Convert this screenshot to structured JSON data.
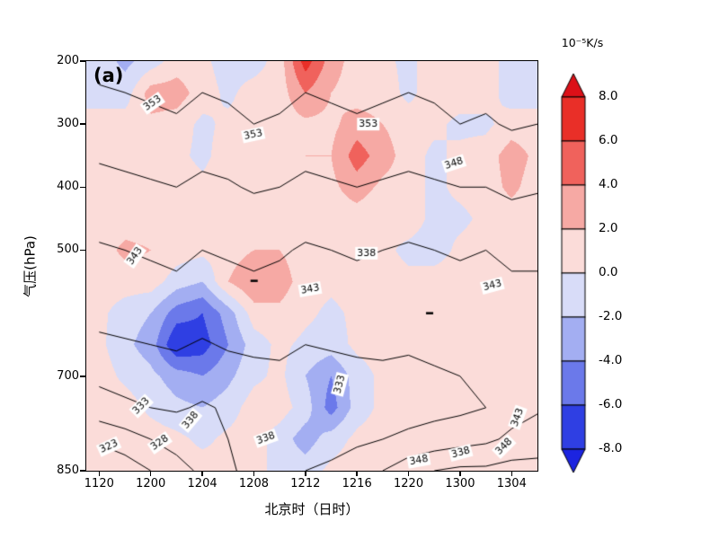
{
  "figure": {
    "panel_label": "(a)"
  },
  "axes": {
    "x": {
      "title": "北京时（日时）",
      "ticks": [
        "1120",
        "1200",
        "1204",
        "1208",
        "1212",
        "1216",
        "1220",
        "1300",
        "1304"
      ],
      "tick_hours": [
        0,
        4,
        8,
        12,
        16,
        20,
        24,
        28,
        32
      ],
      "domain_hours": [
        -1,
        34
      ]
    },
    "y": {
      "title": "气压(hPa)",
      "ticks": [
        "200",
        "300",
        "400",
        "500",
        "700",
        "850"
      ],
      "tick_values": [
        200,
        300,
        400,
        500,
        700,
        850
      ],
      "domain": [
        200,
        850
      ]
    }
  },
  "colorbar": {
    "title": "10⁻⁵K/s",
    "tick_labels": [
      "8.0",
      "6.0",
      "4.0",
      "2.0",
      "0.0",
      "-2.0",
      "-4.0",
      "-6.0",
      "-8.0"
    ],
    "boundaries": [
      8,
      6,
      4,
      2,
      0,
      -2,
      -4,
      -6,
      -8
    ],
    "segment_colors_top_to_bottom": [
      "#e92f28",
      "#f0625c",
      "#f6a9a4",
      "#fbdcd9",
      "#d8dcf8",
      "#a3aef2",
      "#6b79ea",
      "#2f3fe3"
    ],
    "arrow_top_color": "#dc1018",
    "arrow_bottom_color": "#1c24e0"
  },
  "chart_data": {
    "type": "heatmap",
    "description": "Time-pressure section of heating rate (shaded, 10^-5 K/s) with theta-e contours (K)",
    "x_hours": [
      0,
      2,
      4,
      6,
      8,
      10,
      12,
      14,
      16,
      18,
      20,
      22,
      24,
      26,
      28,
      30,
      32,
      34
    ],
    "x_hour_zero_label": "1120",
    "pressure_levels": [
      200,
      250,
      300,
      350,
      400,
      450,
      500,
      550,
      600,
      650,
      700,
      750,
      800,
      850
    ],
    "fill_levels": [
      -8,
      -6,
      -4,
      -2,
      0,
      2,
      4,
      6,
      8
    ],
    "fill_colors": [
      "#1c24e0",
      "#2f3fe3",
      "#6b79ea",
      "#a3aef2",
      "#d8dcf8",
      "#fbdcd9",
      "#f6a9a4",
      "#f0625c",
      "#e92f28",
      "#dc1018"
    ],
    "heating": [
      [
        -1,
        -2.5,
        -1,
        1,
        0.5,
        -1,
        -1,
        1,
        7,
        3,
        1,
        0.5,
        -0.5,
        1,
        1,
        1,
        -1,
        -1
      ],
      [
        -1,
        -1,
        3,
        3,
        1,
        -0.5,
        1,
        1,
        4,
        2,
        1,
        1,
        -0.5,
        1,
        1,
        1,
        -1,
        -1
      ],
      [
        1,
        1,
        1.5,
        1,
        -0.5,
        0.5,
        1,
        1,
        1.5,
        1.5,
        3,
        2,
        1,
        0.5,
        -0.5,
        -0.5,
        1,
        1
      ],
      [
        1,
        1,
        1,
        0.5,
        -0.5,
        1,
        1,
        1,
        2,
        2,
        5,
        3,
        1,
        -0.5,
        0.5,
        1,
        3,
        1.5
      ],
      [
        0.5,
        1,
        1,
        1,
        0.5,
        1,
        1,
        1.5,
        2,
        1.5,
        3,
        1.5,
        1,
        -0.5,
        0.5,
        1,
        2.5,
        1
      ],
      [
        1,
        1,
        1,
        1,
        0.5,
        1,
        1.5,
        1,
        1,
        1,
        1,
        0.5,
        1,
        -0.5,
        -0.5,
        0.5,
        1,
        1
      ],
      [
        1,
        2.5,
        2,
        1,
        0.5,
        1,
        2,
        2,
        1,
        0.5,
        1,
        0.5,
        -0.5,
        -1,
        0.5,
        1,
        1,
        1
      ],
      [
        1,
        1,
        1,
        -1,
        -2,
        2,
        4,
        3,
        1,
        0.5,
        1,
        1,
        0.5,
        1,
        1,
        1,
        1,
        1
      ],
      [
        0.5,
        -1,
        -2,
        -5,
        -6,
        -3,
        1,
        1.5,
        0.5,
        -0.5,
        0.5,
        1,
        0.5,
        0.5,
        1,
        1,
        1,
        1
      ],
      [
        0.5,
        -1.5,
        -3,
        -8,
        -7,
        -4,
        -1,
        0.5,
        -0.5,
        -1,
        0.5,
        1,
        1,
        0.5,
        1,
        1,
        1,
        1
      ],
      [
        1,
        -0.5,
        -1.5,
        -3,
        -4,
        -2.5,
        -0.5,
        0.5,
        -2,
        -4,
        -1,
        0.5,
        1,
        0.5,
        0.5,
        1,
        0.5,
        1
      ],
      [
        1,
        1,
        -0.5,
        -1.5,
        -2,
        -1,
        1,
        1,
        -1,
        -5,
        -1,
        0.5,
        0.5,
        1,
        1,
        0.5,
        1,
        1
      ],
      [
        1,
        1,
        1,
        0.5,
        -0.5,
        0.5,
        1,
        -1,
        -3,
        -1,
        0.5,
        1,
        0.5,
        1,
        0.5,
        1,
        1,
        1
      ],
      [
        1,
        1,
        0.5,
        1,
        1,
        0.5,
        0.5,
        -0.5,
        -1,
        0.5,
        1,
        1,
        1,
        1,
        1,
        1,
        1,
        1
      ]
    ],
    "contour_levels": [
      323,
      328,
      333,
      338,
      343,
      348,
      353
    ],
    "theta_e": [
      [
        354.5,
        355,
        355.5,
        356,
        355,
        355.5,
        356.5,
        356,
        355,
        355.5,
        356,
        355.5,
        355,
        355.5,
        356.5,
        356,
        357,
        356.5
      ],
      [
        352.5,
        353,
        353.5,
        354,
        353,
        353.5,
        354.5,
        354,
        353,
        353.5,
        354,
        353.5,
        353,
        353.5,
        354.5,
        354,
        355,
        354.5
      ],
      [
        351,
        351.5,
        352,
        352.5,
        351.5,
        352,
        353,
        352.5,
        351.5,
        352,
        352.5,
        352,
        351.5,
        352,
        353,
        352.5,
        353.5,
        353
      ],
      [
        348.5,
        349,
        349.5,
        350,
        349,
        349.5,
        350.5,
        350,
        349,
        349.5,
        350,
        349.5,
        349,
        349.5,
        350.5,
        350,
        351,
        350.5
      ],
      [
        346.5,
        347,
        347.5,
        348,
        347,
        347.5,
        348.5,
        348,
        347,
        347.5,
        348,
        347.5,
        347,
        347.5,
        348,
        348,
        349,
        348.5
      ],
      [
        344.5,
        345,
        345.5,
        346,
        345,
        345.5,
        346,
        345.5,
        344.5,
        345,
        345.5,
        345,
        344.5,
        345,
        345.5,
        345.5,
        346.5,
        346
      ],
      [
        342.5,
        343,
        343.5,
        344,
        343,
        343.5,
        344,
        343.5,
        342.5,
        343,
        343.5,
        343,
        342.5,
        343,
        343.5,
        343,
        344,
        344
      ],
      [
        341,
        341.5,
        342,
        342.5,
        341.5,
        342,
        342.5,
        342,
        341,
        341.5,
        342,
        341.5,
        341,
        341.5,
        342,
        341.5,
        342.5,
        342.5
      ],
      [
        339.5,
        340,
        340.5,
        341,
        340,
        340.5,
        341,
        340.5,
        339.5,
        340,
        340.5,
        340,
        339.5,
        340,
        340.5,
        340,
        341,
        341
      ],
      [
        337,
        337.5,
        338,
        338.5,
        337.5,
        338.5,
        339,
        339,
        338,
        338.5,
        339,
        339,
        338.5,
        339,
        339.5,
        339,
        340,
        340.5
      ],
      [
        334,
        335,
        335.5,
        336,
        335,
        336,
        336.5,
        337,
        335.5,
        336,
        336.5,
        337,
        337,
        337.5,
        338,
        338,
        339.5,
        340
      ],
      [
        331,
        332,
        333,
        333.5,
        332.5,
        333.5,
        334,
        335,
        334,
        334.5,
        335,
        335.5,
        336,
        336.5,
        337,
        338,
        341,
        342.5
      ],
      [
        324,
        326,
        328,
        330,
        331,
        333,
        334.5,
        336,
        335,
        336,
        337,
        338,
        339,
        340,
        341,
        342,
        344,
        345
      ],
      [
        318,
        320,
        323,
        326,
        329,
        332,
        335,
        337,
        338,
        339,
        341,
        343,
        346,
        348,
        349,
        349,
        350,
        350
      ]
    ],
    "contour_labels": [
      {
        "v": "353",
        "x": 0.147,
        "y": 0.103,
        "r": -35
      },
      {
        "v": "353",
        "x": 0.37,
        "y": 0.18,
        "r": -12
      },
      {
        "v": "353",
        "x": 0.625,
        "y": 0.154,
        "r": 0
      },
      {
        "v": "348",
        "x": 0.815,
        "y": 0.25,
        "r": -18
      },
      {
        "v": "343",
        "x": 0.108,
        "y": 0.476,
        "r": -55
      },
      {
        "v": "338",
        "x": 0.621,
        "y": 0.469,
        "r": 0
      },
      {
        "v": "343",
        "x": 0.496,
        "y": 0.557,
        "r": -10
      },
      {
        "v": "343",
        "x": 0.9,
        "y": 0.548,
        "r": -15
      },
      {
        "v": "333",
        "x": 0.562,
        "y": 0.789,
        "r": -75
      },
      {
        "v": "333",
        "x": 0.122,
        "y": 0.842,
        "r": -45
      },
      {
        "v": "338",
        "x": 0.231,
        "y": 0.877,
        "r": -50
      },
      {
        "v": "323",
        "x": 0.05,
        "y": 0.941,
        "r": -25
      },
      {
        "v": "328",
        "x": 0.163,
        "y": 0.932,
        "r": -35
      },
      {
        "v": "338",
        "x": 0.398,
        "y": 0.921,
        "r": -20
      },
      {
        "v": "348",
        "x": 0.737,
        "y": 0.975,
        "r": -10
      },
      {
        "v": "338",
        "x": 0.83,
        "y": 0.956,
        "r": -15
      },
      {
        "v": "343",
        "x": 0.956,
        "y": 0.87,
        "r": -70
      },
      {
        "v": "348",
        "x": 0.926,
        "y": 0.941,
        "r": -45
      }
    ],
    "dash_marks": [
      {
        "x": 0.372,
        "y": 0.537
      },
      {
        "x": 0.761,
        "y": 0.616
      }
    ]
  }
}
